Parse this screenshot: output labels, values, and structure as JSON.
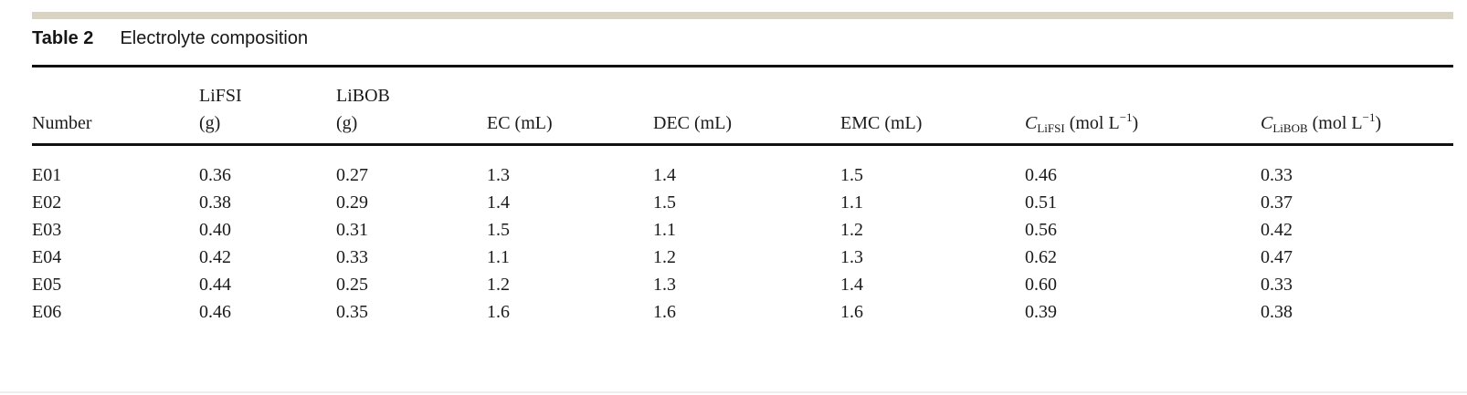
{
  "page": {
    "background": "#ffffff",
    "accent_bar_color": "#d9d3c4",
    "rule_color": "#101010",
    "text_color": "#1a1a1a"
  },
  "table": {
    "label": "Table 2",
    "caption": "Electrolyte composition",
    "header": {
      "number": "Number",
      "lifsi_line1": "LiFSI",
      "lifsi_line2": "(g)",
      "libob_line1": "LiBOB",
      "libob_line2": "(g)",
      "ec": "EC (mL)",
      "dec": "DEC (mL)",
      "emc": "EMC (mL)",
      "c_lifsi": {
        "symbol": "C",
        "sub": "LiFSI",
        "mid": " (mol L",
        "sup": "−1",
        "end": ")"
      },
      "c_libob": {
        "symbol": "C",
        "sub": "LiBOB",
        "mid": " (mol L",
        "sup": "−1",
        "end": ")"
      }
    },
    "rows": [
      [
        "E01",
        "0.36",
        "0.27",
        "1.3",
        "1.4",
        "1.5",
        "0.46",
        "0.33"
      ],
      [
        "E02",
        "0.38",
        "0.29",
        "1.4",
        "1.5",
        "1.1",
        "0.51",
        "0.37"
      ],
      [
        "E03",
        "0.40",
        "0.31",
        "1.5",
        "1.1",
        "1.2",
        "0.56",
        "0.42"
      ],
      [
        "E04",
        "0.42",
        "0.33",
        "1.1",
        "1.2",
        "1.3",
        "0.62",
        "0.47"
      ],
      [
        "E05",
        "0.44",
        "0.25",
        "1.2",
        "1.3",
        "1.4",
        "0.60",
        "0.33"
      ],
      [
        "E06",
        "0.46",
        "0.35",
        "1.6",
        "1.6",
        "1.6",
        "0.39",
        "0.38"
      ]
    ]
  },
  "chart_data": {
    "type": "table",
    "title": "Table 2 Electrolyte composition",
    "columns": [
      "Number",
      "LiFSI (g)",
      "LiBOB (g)",
      "EC (mL)",
      "DEC (mL)",
      "EMC (mL)",
      "C_LiFSI (mol L^-1)",
      "C_LiBOB (mol L^-1)"
    ],
    "rows": [
      [
        "E01",
        0.36,
        0.27,
        1.3,
        1.4,
        1.5,
        0.46,
        0.33
      ],
      [
        "E02",
        0.38,
        0.29,
        1.4,
        1.5,
        1.1,
        0.51,
        0.37
      ],
      [
        "E03",
        0.4,
        0.31,
        1.5,
        1.1,
        1.2,
        0.56,
        0.42
      ],
      [
        "E04",
        0.42,
        0.33,
        1.1,
        1.2,
        1.3,
        0.62,
        0.47
      ],
      [
        "E05",
        0.44,
        0.25,
        1.2,
        1.3,
        1.4,
        0.6,
        0.33
      ],
      [
        "E06",
        0.46,
        0.35,
        1.6,
        1.6,
        1.6,
        0.39,
        0.38
      ]
    ]
  }
}
